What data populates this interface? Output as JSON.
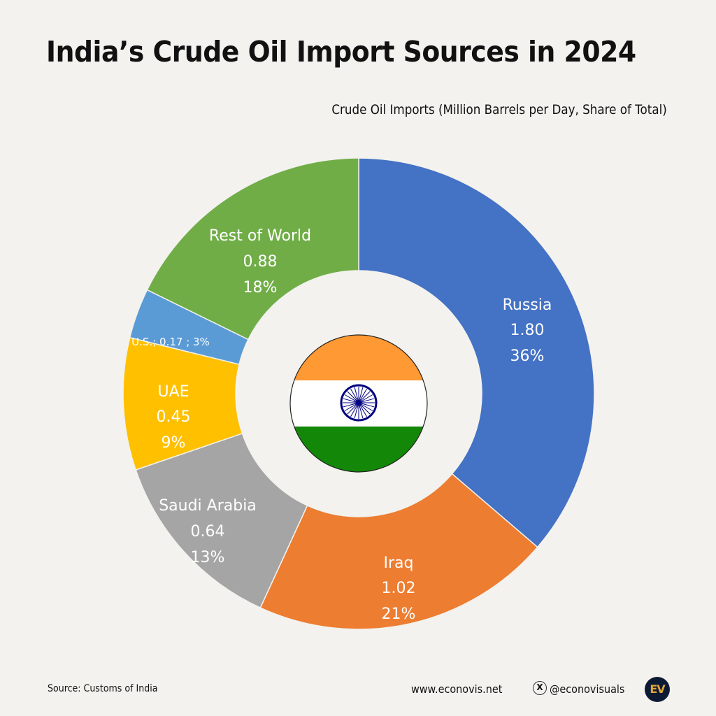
{
  "title": "India’s Crude Oil Import Sources in 2024",
  "subtitle": "Crude Oil Imports (Million Barrels per Day, Share of Total)",
  "chart_data": {
    "type": "pie",
    "variant": "donut",
    "title": "India’s Crude Oil Import Sources in 2024",
    "subtitle": "Crude Oil Imports (Million Barrels per Day, Share of Total)",
    "unit": "Million Barrels per Day",
    "categories": [
      "Russia",
      "Iraq",
      "Saudi Arabia",
      "UAE",
      "U.S.",
      "Rest of World"
    ],
    "values": [
      1.8,
      1.02,
      0.64,
      0.45,
      0.17,
      0.88
    ],
    "shares_pct": [
      36,
      21,
      13,
      9,
      3,
      18
    ],
    "colors": [
      "#4472c4",
      "#ed7d31",
      "#a5a5a5",
      "#ffc000",
      "#5b9bd5",
      "#70ad47"
    ],
    "start_angle": "12 o'clock",
    "direction": "clockwise",
    "center_image": "india-flag"
  },
  "labels": {
    "russia": {
      "name": "Russia",
      "value": "1.80",
      "share": "36%"
    },
    "iraq": {
      "name": "Iraq",
      "value": "1.02",
      "share": "21%"
    },
    "saudi": {
      "name": "Saudi Arabia",
      "value": "0.64",
      "share": "13%"
    },
    "uae": {
      "name": "UAE",
      "value": "0.45",
      "share": "9%"
    },
    "us": {
      "combined": "U.S.;  0.17 ; 3%"
    },
    "row": {
      "name": "Rest of World",
      "value": "0.88",
      "share": "18%"
    }
  },
  "footer": {
    "source": "Source: Customs of India",
    "website": "www.econovis.net",
    "x_icon": "x-logo-icon",
    "handle": "@econovisuals",
    "logo_text": "EV"
  }
}
